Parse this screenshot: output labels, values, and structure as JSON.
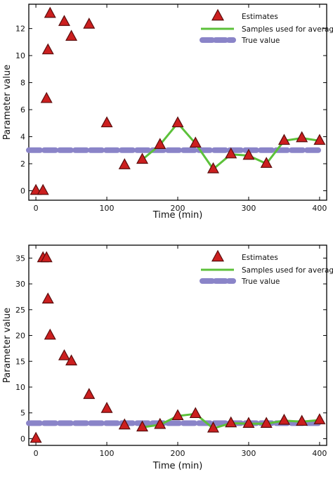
{
  "colors": {
    "estimate_fill": "#cc1f1f",
    "estimate_stroke": "#5a0c0c",
    "average_line": "#5cc13a",
    "true_line": "#8a84c8"
  },
  "chart_data": [
    {
      "type": "scatter",
      "xlabel": "Time (min)",
      "ylabel": "Parameter value",
      "xlim": [
        -10,
        410
      ],
      "ylim": [
        -0.7,
        13.8
      ],
      "xticks": [
        0,
        100,
        200,
        300,
        400
      ],
      "yticks": [
        0,
        2,
        4,
        6,
        8,
        10,
        12
      ],
      "legend_position": "top-right",
      "grid": false,
      "series": [
        {
          "name": "Estimates",
          "kind": "markers",
          "x": [
            0,
            10,
            15,
            17,
            20,
            40,
            50,
            75,
            100,
            125,
            150,
            175,
            200,
            225,
            250,
            275,
            300,
            325,
            350,
            375,
            400
          ],
          "y": [
            0,
            0,
            6.8,
            10.4,
            13.1,
            12.5,
            11.4,
            12.3,
            5.0,
            1.9,
            2.3,
            3.4,
            5.0,
            3.5,
            1.6,
            2.7,
            2.6,
            2.0,
            3.7,
            3.9,
            3.7
          ]
        },
        {
          "name": "Samples used for average",
          "kind": "line",
          "x": [
            150,
            175,
            200,
            225,
            250,
            275,
            300,
            325,
            350,
            375,
            400
          ],
          "y": [
            2.3,
            3.4,
            5.0,
            3.5,
            1.6,
            2.7,
            2.6,
            2.0,
            3.7,
            3.9,
            3.7
          ]
        },
        {
          "name": "True value",
          "kind": "dashed-line",
          "x": [
            -10,
            400
          ],
          "y": [
            3.0,
            3.0
          ]
        }
      ]
    },
    {
      "type": "scatter",
      "xlabel": "Time (min)",
      "ylabel": "Parameter value",
      "xlim": [
        -10,
        410
      ],
      "ylim": [
        -1.3,
        37.5
      ],
      "xticks": [
        0,
        100,
        200,
        300,
        400
      ],
      "yticks": [
        0,
        5,
        10,
        15,
        20,
        25,
        30,
        35
      ],
      "legend_position": "top-right",
      "grid": false,
      "series": [
        {
          "name": "Estimates",
          "kind": "markers",
          "x": [
            0,
            10,
            15,
            17,
            20,
            40,
            50,
            75,
            100,
            125,
            150,
            175,
            200,
            225,
            250,
            275,
            300,
            325,
            350,
            375,
            400
          ],
          "y": [
            0,
            35,
            35,
            27,
            20,
            16,
            15,
            8.5,
            5.8,
            2.6,
            2.2,
            2.7,
            4.4,
            4.8,
            2.0,
            3.0,
            2.9,
            2.9,
            3.5,
            3.3,
            3.6
          ]
        },
        {
          "name": "Samples used for average",
          "kind": "line",
          "x": [
            150,
            175,
            200,
            225,
            250,
            275,
            300,
            325,
            350,
            375,
            400
          ],
          "y": [
            2.2,
            2.7,
            4.4,
            4.8,
            2.0,
            3.0,
            2.9,
            2.9,
            3.5,
            3.3,
            3.6
          ]
        },
        {
          "name": "True value",
          "kind": "dashed-line",
          "x": [
            -10,
            400
          ],
          "y": [
            3.0,
            3.0
          ]
        }
      ]
    }
  ]
}
